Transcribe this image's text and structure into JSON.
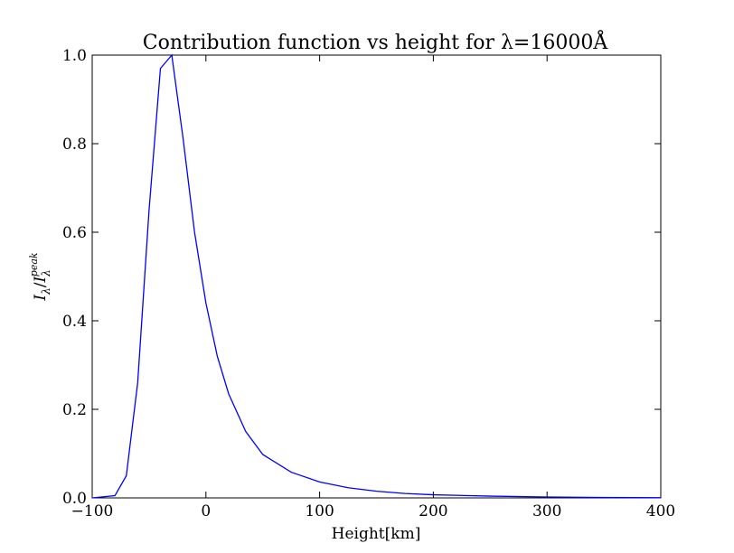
{
  "chart_data": {
    "type": "line",
    "title": "Contribution function vs height for λ=16000Å",
    "xlabel": "Height[km]",
    "ylabel": "I_λ / I_λ^peak",
    "ylabel_parts": {
      "base1": "I",
      "sub1": "λ",
      "slash": "/",
      "base2": "I",
      "sub2": "λ",
      "sup2": "peak"
    },
    "xlim": [
      -100,
      400
    ],
    "ylim": [
      0.0,
      1.0
    ],
    "xticks": [
      -100,
      0,
      100,
      200,
      300,
      400
    ],
    "xtick_labels": [
      "−100",
      "0",
      "100",
      "200",
      "300",
      "400"
    ],
    "yticks": [
      0.0,
      0.2,
      0.4,
      0.6,
      0.8,
      1.0
    ],
    "ytick_labels": [
      "0.0",
      "0.2",
      "0.4",
      "0.6",
      "0.8",
      "1.0"
    ],
    "grid": false,
    "line_color": "#0000ff",
    "series": [
      {
        "x": [
          -100,
          -80,
          -70,
          -60,
          -50,
          -40,
          -30,
          -20,
          -10,
          0,
          10,
          20,
          35,
          50,
          75,
          100,
          125,
          150,
          175,
          200,
          250,
          300,
          350,
          400
        ],
        "y": [
          0.0,
          0.005,
          0.05,
          0.26,
          0.65,
          0.97,
          1.0,
          0.81,
          0.6,
          0.44,
          0.32,
          0.235,
          0.15,
          0.098,
          0.058,
          0.036,
          0.023,
          0.015,
          0.01,
          0.007,
          0.004,
          0.002,
          0.001,
          0.0005
        ]
      }
    ]
  }
}
